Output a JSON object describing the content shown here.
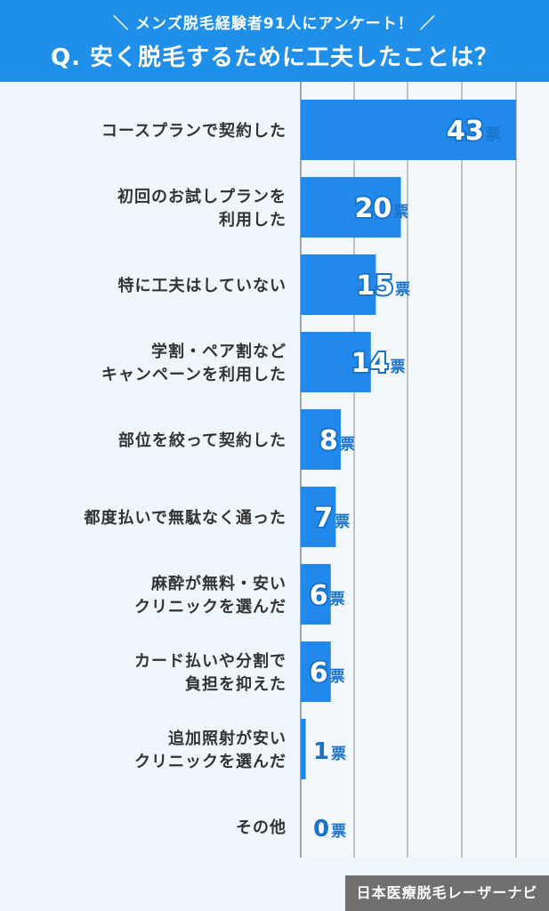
{
  "header": {
    "subtitle": "＼ メンズ脱毛経験者91人にアンケート！ ／",
    "title": "Q. 安く脱毛するために工夫したことは？"
  },
  "credit": "日本医療脱毛レーザーナビ",
  "colors": {
    "header_bg": "#1f8fea",
    "bar": "#2289ec",
    "value_text": "#1a73c9",
    "chart_bg": "#eef5fb"
  },
  "chart_data": {
    "type": "bar",
    "orientation": "horizontal",
    "title": "Q. 安く脱毛するために工夫したことは？",
    "xlabel": "",
    "ylabel": "",
    "xlim": [
      0,
      45
    ],
    "grid": true,
    "legend": "none",
    "unit": "票",
    "categories": [
      [
        "コースプランで契約した"
      ],
      [
        "初回のお試しプランを",
        "利用した"
      ],
      [
        "特に工夫はしていない"
      ],
      [
        "学割・ペア割など",
        "キャンペーンを利用した"
      ],
      [
        "部位を絞って契約した"
      ],
      [
        "都度払いで無駄なく通った"
      ],
      [
        "麻酔が無料・安い",
        "クリニックを選んだ"
      ],
      [
        "カード払いや分割で",
        "負担を抑えた"
      ],
      [
        "追加照射が安い",
        "クリニックを選んだ"
      ],
      [
        "その他"
      ]
    ],
    "values": [
      43,
      20,
      15,
      14,
      8,
      7,
      6,
      6,
      1,
      0
    ]
  }
}
